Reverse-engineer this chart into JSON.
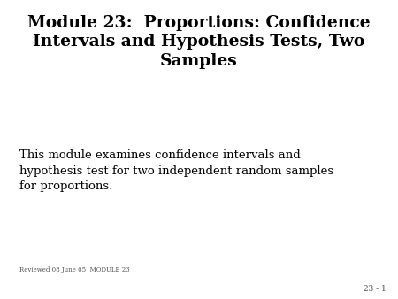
{
  "title_line1": "Module 23:  Proportions: Confidence",
  "title_line2": "Intervals and Hypothesis Tests, Two",
  "title_line3": "Samples",
  "body_text": "This module examines confidence intervals and\nhypothesis test for two independent random samples\nfor proportions.",
  "footer_text": "Reviewed 08 June 05  MODULE 23",
  "page_number": "23 - 1",
  "background_color": "#ffffff",
  "title_color": "#000000",
  "body_color": "#000000",
  "footer_color": "#555555",
  "title_fontsize": 13.5,
  "body_fontsize": 9.5,
  "footer_fontsize": 5.0,
  "page_num_fontsize": 6.5
}
